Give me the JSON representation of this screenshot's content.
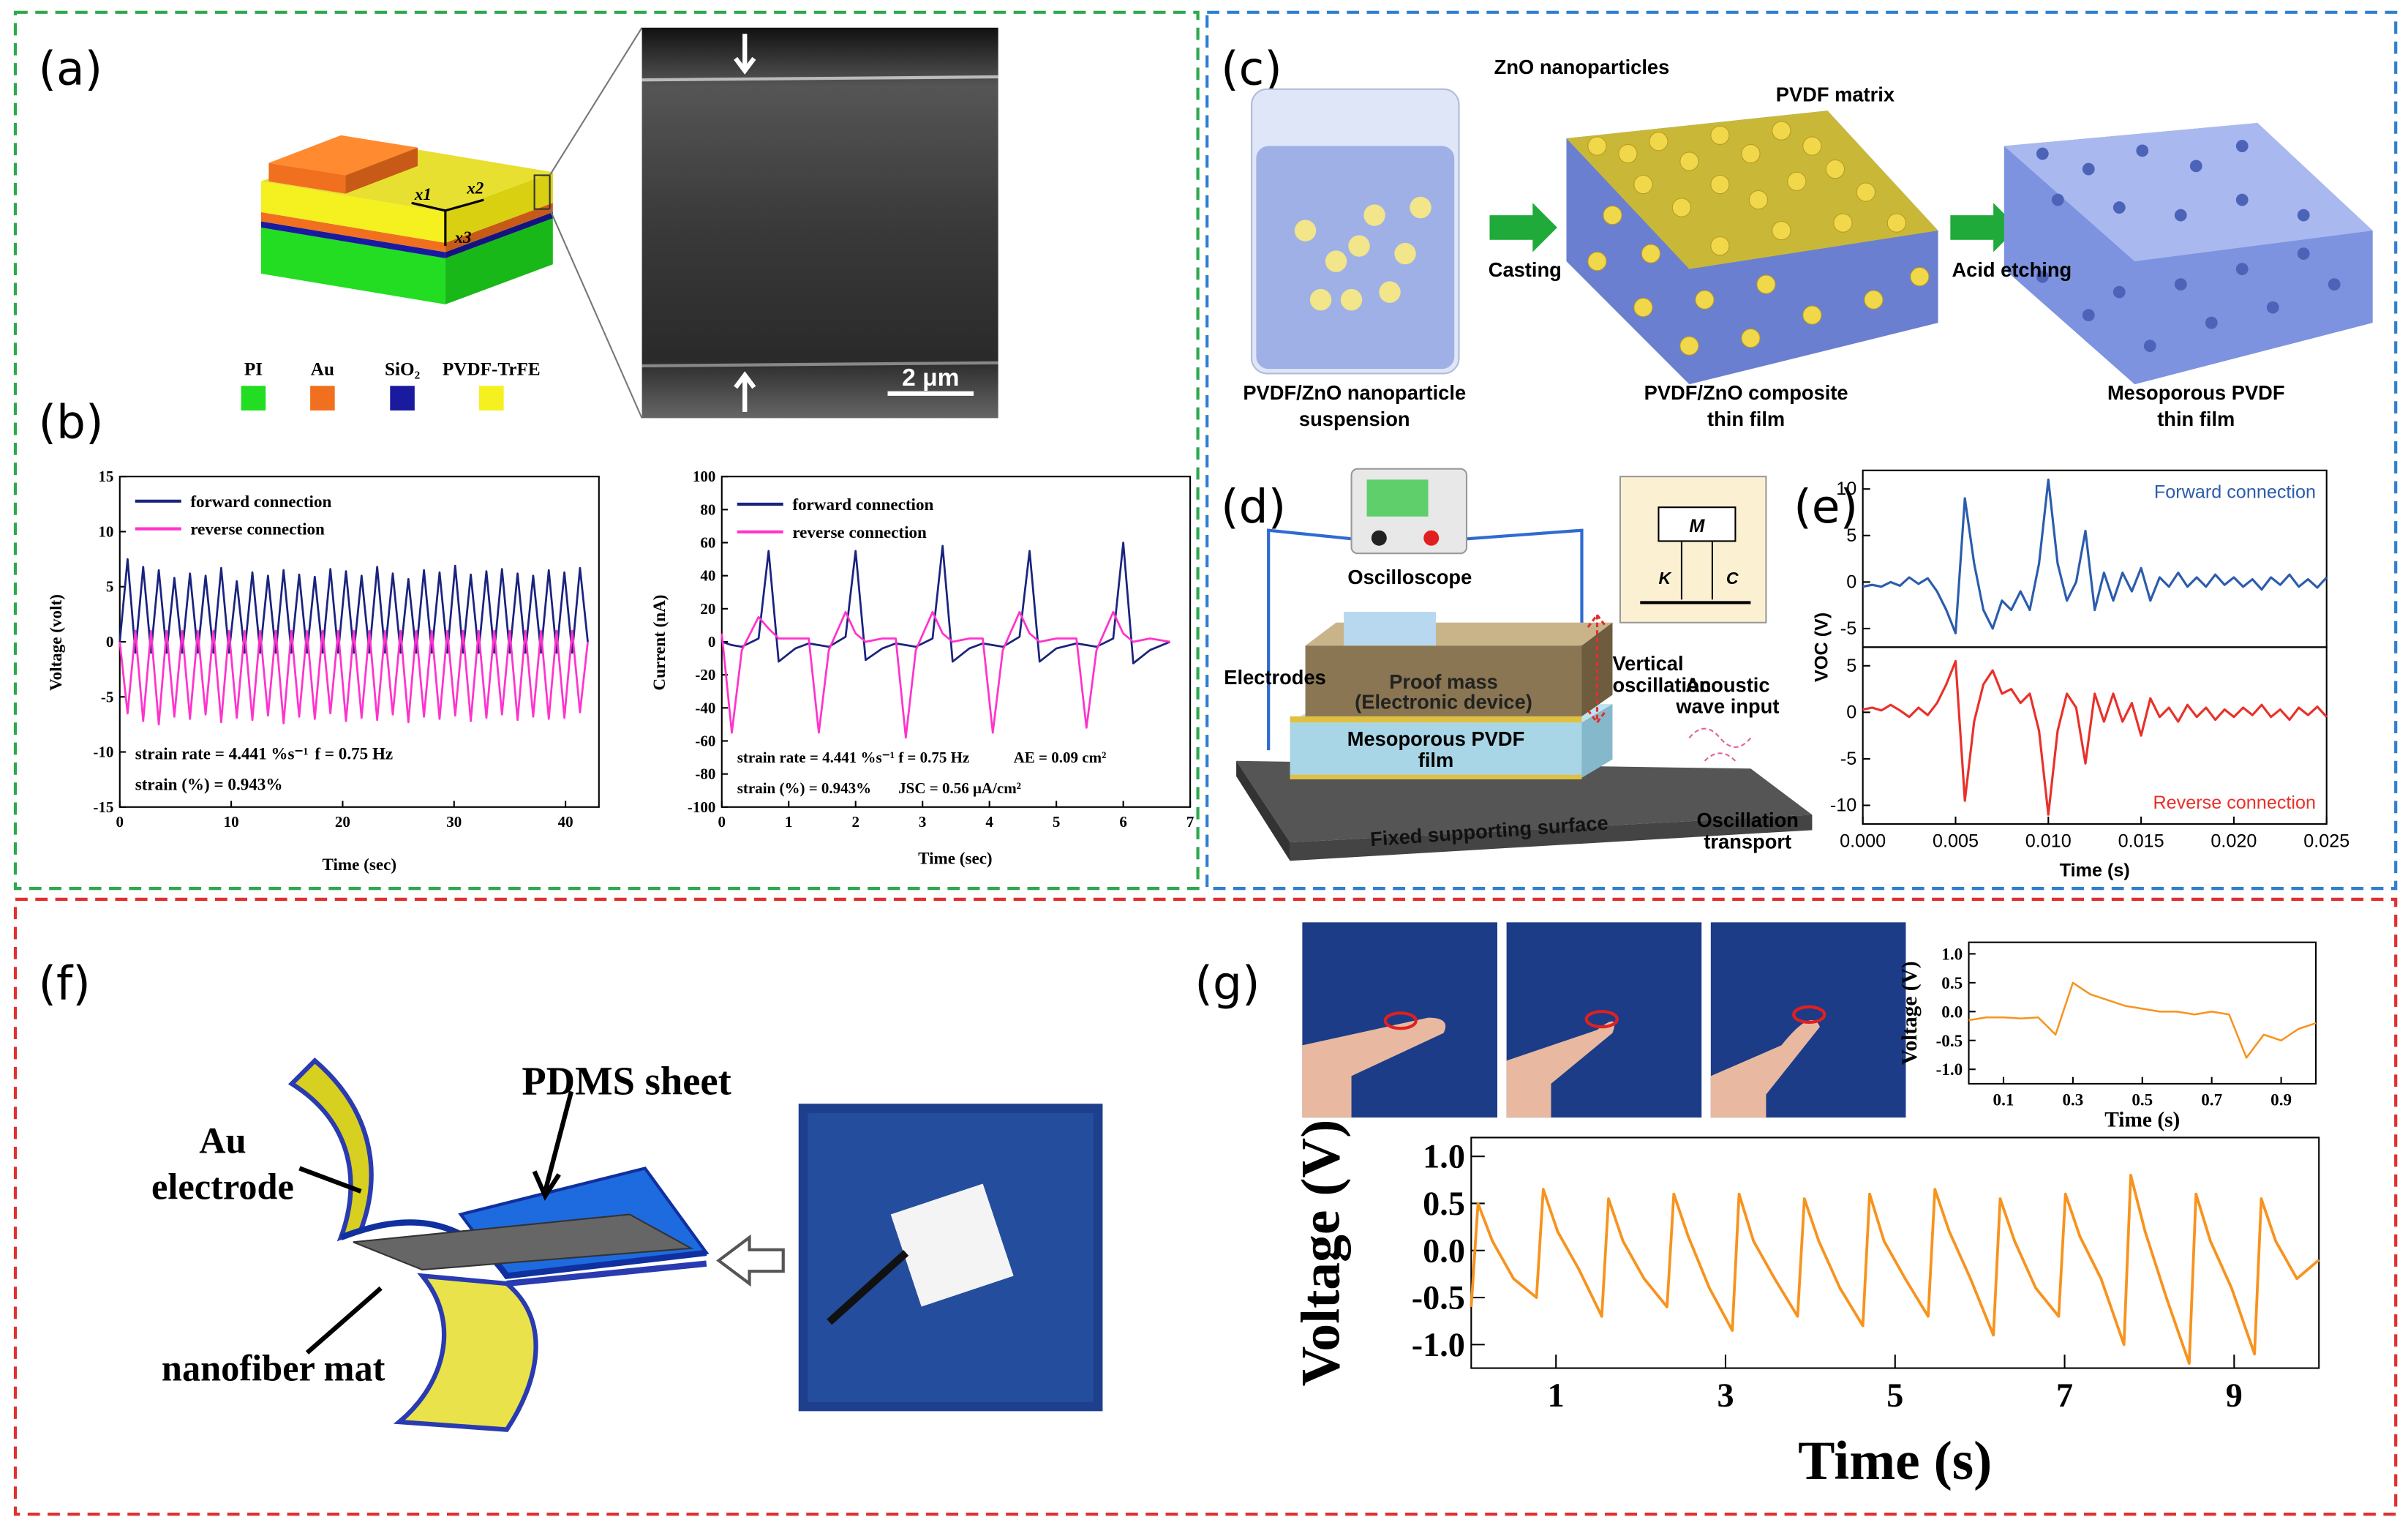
{
  "panel_labels": [
    "(a)",
    "(b)",
    "(c)",
    "(d)",
    "(e)",
    "(f)",
    "(g)"
  ],
  "panel_a": {
    "axes": [
      "x1",
      "x2",
      "x3"
    ],
    "scale_bar": "2 μm",
    "legend": [
      {
        "label": "PI",
        "color": "#22dd22"
      },
      {
        "label": "Au",
        "color": "#f07020"
      },
      {
        "label": "SiO₂",
        "color": "#1a1aa0"
      },
      {
        "label": "PVDF-TrFE",
        "color": "#f5f020"
      }
    ]
  },
  "panel_c": {
    "top_labels": [
      "ZnO nanoparticles",
      "PVDF matrix"
    ],
    "arrows": [
      "Casting",
      "Acid etching"
    ],
    "captions": [
      [
        "PVDF/ZnO nanoparticle",
        "suspension"
      ],
      [
        "PVDF/ZnO composite",
        "thin film"
      ],
      [
        "Mesoporous PVDF",
        "thin film"
      ]
    ]
  },
  "panel_d": {
    "labels": {
      "oscilloscope": "Oscilloscope",
      "mass": "M",
      "spring": "K",
      "damper": "C",
      "electrodes": "Electrodes",
      "proof_mass": [
        "Proof mass",
        "(Electronic device)"
      ],
      "film": [
        "Mesoporous PVDF",
        "film"
      ],
      "vertical": [
        "Vertical",
        "oscillation"
      ],
      "acoustic": [
        "Acoustic",
        "wave input"
      ],
      "surface": "Fixed supporting surface",
      "transport": [
        "Oscillation",
        "transport"
      ]
    }
  },
  "panel_f": {
    "labels": {
      "pdms": "PDMS sheet",
      "au": [
        "Au",
        "electrode"
      ],
      "mat": "nanofiber mat"
    }
  },
  "chart_data": [
    {
      "type": "line",
      "xlabel": "Time (sec)",
      "ylabel": "Voltage (volt)",
      "xlim": [
        0,
        43
      ],
      "xticks": [
        0,
        10,
        20,
        30,
        40
      ],
      "ylim": [
        -15,
        15
      ],
      "yticks": [
        -15,
        -10,
        -5,
        0,
        5,
        10,
        15
      ],
      "annotations": [
        "strain rate = 4.441 %s⁻¹",
        "f = 0.75 Hz",
        "strain (%) = 0.943%"
      ],
      "x": [
        0,
        0.7,
        1.4,
        2.1,
        2.8,
        3.5,
        4.2,
        4.9,
        5.6,
        6.3,
        7.0,
        7.7,
        8.4,
        9.1,
        9.8,
        10.5,
        11.2,
        11.9,
        12.6,
        13.3,
        14.0,
        14.7,
        15.4,
        16.1,
        16.8,
        17.5,
        18.2,
        18.9,
        19.6,
        20.3,
        21.0,
        21.7,
        22.4,
        23.1,
        23.8,
        24.5,
        25.2,
        25.9,
        26.6,
        27.3,
        28.0,
        28.7,
        29.4,
        30.1,
        30.8,
        31.5,
        32.2,
        32.9,
        33.6,
        34.3,
        35.0,
        35.7,
        36.4,
        37.1,
        37.8,
        38.5,
        39.2,
        39.9,
        40.6,
        41.3,
        42.0
      ],
      "series": [
        {
          "name": "forward connection",
          "color": "#1a237e",
          "values": [
            0,
            7.5,
            -1,
            6.8,
            -1,
            6.5,
            -1,
            5.8,
            -1,
            6.2,
            -1,
            6.0,
            -1,
            6.7,
            -1,
            5.5,
            -1,
            6.3,
            -1,
            6.0,
            -1,
            6.5,
            -1,
            6.1,
            -1,
            5.9,
            -1,
            6.6,
            -1,
            6.4,
            -1,
            6.0,
            -1,
            6.8,
            -1,
            6.2,
            -1,
            5.7,
            -1,
            6.5,
            -1,
            6.3,
            -1,
            6.9,
            -1,
            6.1,
            -1,
            6.4,
            -1,
            6.6,
            -1,
            6.2,
            -1,
            6.0,
            -1,
            6.5,
            -1,
            6.3,
            -1,
            6.7,
            0
          ]
        },
        {
          "name": "reverse connection",
          "color": "#ff33cc",
          "values": [
            0,
            -6.5,
            1,
            -7.2,
            1,
            -7.5,
            1,
            -6.8,
            1,
            -7.0,
            1,
            -6.6,
            1,
            -7.3,
            1,
            -6.9,
            1,
            -7.1,
            1,
            -6.7,
            1,
            -7.4,
            1,
            -6.8,
            1,
            -7.0,
            1,
            -6.5,
            1,
            -7.2,
            1,
            -6.9,
            1,
            -7.1,
            1,
            -6.6,
            1,
            -7.3,
            1,
            -6.8,
            1,
            -7.0,
            1,
            -6.7,
            1,
            -7.2,
            1,
            -6.9,
            1,
            -6.6,
            1,
            -7.1,
            1,
            -6.8,
            1,
            -7.0,
            1,
            -6.9,
            1,
            -6.4,
            0
          ]
        }
      ]
    },
    {
      "type": "line",
      "xlabel": "Time (sec)",
      "ylabel": "Current (nA)",
      "xlim": [
        0,
        7
      ],
      "xticks": [
        0,
        1,
        2,
        3,
        4,
        5,
        6,
        7
      ],
      "ylim": [
        -100,
        100
      ],
      "yticks": [
        -100,
        -80,
        -60,
        -40,
        -20,
        0,
        20,
        40,
        60,
        80,
        100
      ],
      "annotations": [
        "strain rate = 4.441 %s⁻¹",
        "f = 0.75 Hz",
        "AE = 0.09 cm²",
        "strain (%) = 0.943%",
        "JSC = 0.56 μA/cm²"
      ],
      "x": [
        0,
        0.15,
        0.3,
        0.55,
        0.7,
        0.85,
        1.1,
        1.3,
        1.45,
        1.6,
        1.85,
        2.0,
        2.15,
        2.4,
        2.6,
        2.75,
        2.9,
        3.15,
        3.3,
        3.45,
        3.7,
        3.9,
        4.05,
        4.2,
        4.45,
        4.6,
        4.75,
        5.0,
        5.3,
        5.45,
        5.6,
        5.85,
        6.0,
        6.15,
        6.4,
        6.7
      ],
      "series": [
        {
          "name": "forward connection",
          "color": "#1a237e",
          "values": [
            0,
            -2,
            -3,
            2,
            55,
            -12,
            -4,
            -1,
            -2,
            -3,
            3,
            55,
            -11,
            -4,
            -1,
            -2,
            -3,
            2,
            58,
            -12,
            -4,
            -1,
            -2,
            -3,
            3,
            55,
            -12,
            -4,
            -1,
            -2,
            -3,
            2,
            60,
            -13,
            -5,
            0
          ]
        },
        {
          "name": "reverse connection",
          "color": "#ff33cc",
          "values": [
            5,
            -55,
            -5,
            15,
            8,
            2,
            2,
            2,
            -55,
            -5,
            18,
            5,
            0,
            2,
            2,
            -58,
            -5,
            18,
            5,
            0,
            2,
            2,
            -55,
            -5,
            18,
            5,
            0,
            2,
            2,
            -52,
            -5,
            18,
            5,
            0,
            2,
            0
          ]
        }
      ]
    },
    {
      "type": "line",
      "ylabel": "VOC (V)",
      "xlim": [
        0,
        0.025
      ],
      "ylim": [
        -7,
        12
      ],
      "yticks": [
        -5,
        0,
        5,
        10
      ],
      "x": [
        0,
        0.0005,
        0.001,
        0.0015,
        0.002,
        0.0025,
        0.003,
        0.0035,
        0.004,
        0.0045,
        0.005,
        0.0055,
        0.006,
        0.0065,
        0.007,
        0.0075,
        0.008,
        0.0085,
        0.009,
        0.0095,
        0.01,
        0.0105,
        0.011,
        0.0115,
        0.012,
        0.0125,
        0.013,
        0.0135,
        0.014,
        0.0145,
        0.015,
        0.0155,
        0.016,
        0.0165,
        0.017,
        0.0175,
        0.018,
        0.0185,
        0.019,
        0.0195,
        0.02,
        0.0205,
        0.021,
        0.0215,
        0.022,
        0.0225,
        0.023,
        0.0235,
        0.024,
        0.0245,
        0.025
      ],
      "series": [
        {
          "name": "Forward connection",
          "color": "#2b5cad",
          "values": [
            -0.5,
            -0.3,
            -0.5,
            0,
            -0.4,
            0.5,
            -0.2,
            0.4,
            -1,
            -3,
            -5.5,
            9,
            2,
            -3,
            -5,
            -2,
            -3,
            -1,
            -3,
            2,
            11,
            2,
            -2,
            0,
            5.5,
            -3,
            1,
            -2,
            1,
            -1,
            1.5,
            -2,
            0.5,
            -0.5,
            1,
            -0.5,
            0.5,
            -0.5,
            0.8,
            -0.3,
            0.5,
            -0.5,
            0.3,
            -0.8,
            0.5,
            -0.3,
            0.8,
            -0.5,
            0.3,
            -0.6,
            0.5
          ]
        }
      ]
    },
    {
      "type": "line",
      "xlabel": "Time (s)",
      "xlim": [
        0,
        0.025
      ],
      "xticks": [
        {
          "value": 0,
          "label": "0.000"
        },
        0.005,
        {
          "value": 0.01,
          "label": "0.010"
        },
        0.015,
        {
          "value": 0.02,
          "label": "0.020"
        },
        0.025
      ],
      "ylim": [
        -12,
        7
      ],
      "yticks": [
        -10,
        -5,
        0,
        5
      ],
      "x": [
        0,
        0.0005,
        0.001,
        0.0015,
        0.002,
        0.0025,
        0.003,
        0.0035,
        0.004,
        0.0045,
        0.005,
        0.0055,
        0.006,
        0.0065,
        0.007,
        0.0075,
        0.008,
        0.0085,
        0.009,
        0.0095,
        0.01,
        0.0105,
        0.011,
        0.0115,
        0.012,
        0.0125,
        0.013,
        0.0135,
        0.014,
        0.0145,
        0.015,
        0.0155,
        0.016,
        0.0165,
        0.017,
        0.0175,
        0.018,
        0.0185,
        0.019,
        0.0195,
        0.02,
        0.0205,
        0.021,
        0.0215,
        0.022,
        0.0225,
        0.023,
        0.0235,
        0.024,
        0.0245,
        0.025
      ],
      "series": [
        {
          "name": "Reverse connection",
          "color": "#e8312a",
          "values": [
            0.3,
            0.5,
            0.2,
            0.8,
            0.2,
            -0.5,
            0.5,
            -0.3,
            1,
            3,
            5.5,
            -9.5,
            -1,
            3,
            4.5,
            2,
            2.5,
            1,
            2,
            -2,
            -11,
            -2,
            2,
            0.5,
            -5.5,
            2,
            -1,
            2,
            -1,
            1,
            -2.5,
            1.5,
            -0.5,
            0.5,
            -1,
            0.8,
            -0.5,
            0.5,
            -0.8,
            0.3,
            -0.5,
            0.5,
            -0.3,
            0.8,
            -0.5,
            0.3,
            -0.8,
            0.5,
            -0.3,
            0.6,
            -0.5
          ]
        }
      ]
    },
    {
      "type": "line",
      "xlabel": "Time (s)",
      "ylabel": "Voltage (V)",
      "xlim": [
        0,
        1
      ],
      "xticks": [
        0.1,
        0.3,
        0.5,
        0.7,
        0.9
      ],
      "ylim": [
        -1.25,
        1.2
      ],
      "yticks": [
        {
          "value": -1,
          "label": "-1.0"
        },
        -0.5,
        {
          "value": 0,
          "label": "0.0"
        },
        0.5,
        {
          "value": 1,
          "label": "1.0"
        }
      ],
      "x": [
        0,
        0.05,
        0.1,
        0.15,
        0.2,
        0.25,
        0.3,
        0.35,
        0.4,
        0.45,
        0.5,
        0.55,
        0.6,
        0.65,
        0.7,
        0.75,
        0.8,
        0.85,
        0.9,
        0.95,
        1.0
      ],
      "series": [
        {
          "color": "#f7931e",
          "values": [
            -0.15,
            -0.1,
            -0.1,
            -0.12,
            -0.1,
            -0.4,
            0.5,
            0.3,
            0.2,
            0.1,
            0.05,
            0,
            0,
            -0.05,
            0,
            -0.05,
            -0.8,
            -0.4,
            -0.5,
            -0.3,
            -0.2
          ]
        }
      ]
    },
    {
      "type": "line",
      "xlabel": "Time (s)",
      "ylabel": "Voltage (V)",
      "xlim": [
        0,
        10
      ],
      "xticks": [
        1,
        3,
        5,
        7,
        9
      ],
      "ylim": [
        -1.25,
        1.2
      ],
      "yticks": [
        {
          "value": -1,
          "label": "-1.0"
        },
        -0.5,
        {
          "value": 0,
          "label": "0.0"
        },
        0.5,
        {
          "value": 1,
          "label": "1.0"
        }
      ],
      "x": [
        0,
        0.08,
        0.25,
        0.5,
        0.77,
        0.85,
        1.02,
        1.27,
        1.54,
        1.62,
        1.79,
        2.04,
        2.31,
        2.39,
        2.56,
        2.81,
        3.08,
        3.16,
        3.33,
        3.58,
        3.85,
        3.93,
        4.1,
        4.35,
        4.62,
        4.7,
        4.87,
        5.12,
        5.39,
        5.47,
        5.64,
        5.89,
        6.16,
        6.24,
        6.41,
        6.66,
        6.93,
        7.01,
        7.18,
        7.43,
        7.7,
        7.78,
        7.95,
        8.2,
        8.47,
        8.55,
        8.72,
        8.97,
        9.24,
        9.32,
        9.49,
        9.74,
        10.0
      ],
      "series": [
        {
          "color": "#f7931e",
          "values": [
            -0.6,
            0.5,
            0.1,
            -0.3,
            -0.5,
            0.65,
            0.2,
            -0.2,
            -0.7,
            0.55,
            0.1,
            -0.3,
            -0.6,
            0.6,
            0.15,
            -0.4,
            -0.85,
            0.6,
            0.1,
            -0.3,
            -0.7,
            0.55,
            0.1,
            -0.4,
            -0.8,
            0.6,
            0.1,
            -0.3,
            -0.7,
            0.65,
            0.2,
            -0.3,
            -0.9,
            0.55,
            0.1,
            -0.4,
            -0.7,
            0.6,
            0.15,
            -0.3,
            -1.0,
            0.8,
            0.2,
            -0.5,
            -1.2,
            0.6,
            0.1,
            -0.4,
            -1.1,
            0.55,
            0.1,
            -0.3,
            -0.1
          ]
        }
      ]
    }
  ]
}
